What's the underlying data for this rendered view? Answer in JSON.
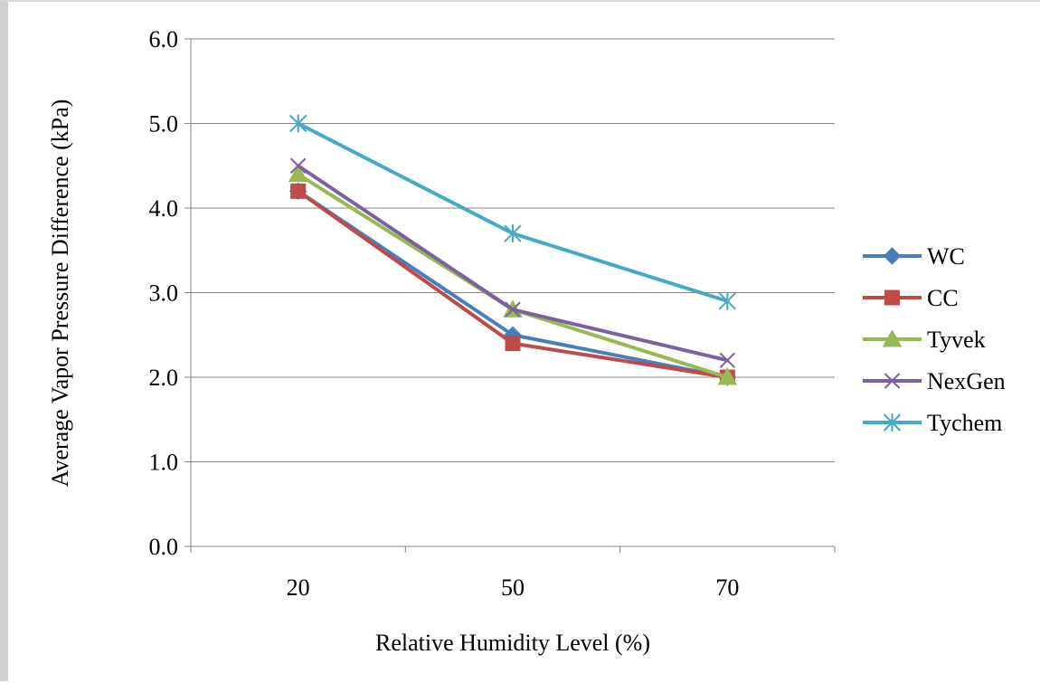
{
  "chart_data": {
    "type": "line",
    "title": "",
    "xlabel": "Relative Humidity Level (%)",
    "ylabel": "Average Vapor Pressure Difference (kPa)",
    "categories": [
      "20",
      "50",
      "70"
    ],
    "ylim": [
      0,
      6
    ],
    "yticks": [
      "0.0",
      "1.0",
      "2.0",
      "3.0",
      "4.0",
      "5.0",
      "6.0"
    ],
    "grid": true,
    "legend_position": "right",
    "series": [
      {
        "name": "WC",
        "values": [
          4.2,
          2.5,
          2.0
        ],
        "color": "#4a7ebb",
        "marker": "diamond"
      },
      {
        "name": "CC",
        "values": [
          4.2,
          2.4,
          2.0
        ],
        "color": "#be4b48",
        "marker": "square"
      },
      {
        "name": "Tyvek",
        "values": [
          4.4,
          2.8,
          2.0
        ],
        "color": "#98b954",
        "marker": "triangle"
      },
      {
        "name": "NexGen",
        "values": [
          4.5,
          2.8,
          2.2
        ],
        "color": "#7d60a0",
        "marker": "x"
      },
      {
        "name": "Tychem",
        "values": [
          5.0,
          3.7,
          2.9
        ],
        "color": "#46aac5",
        "marker": "star"
      }
    ]
  }
}
